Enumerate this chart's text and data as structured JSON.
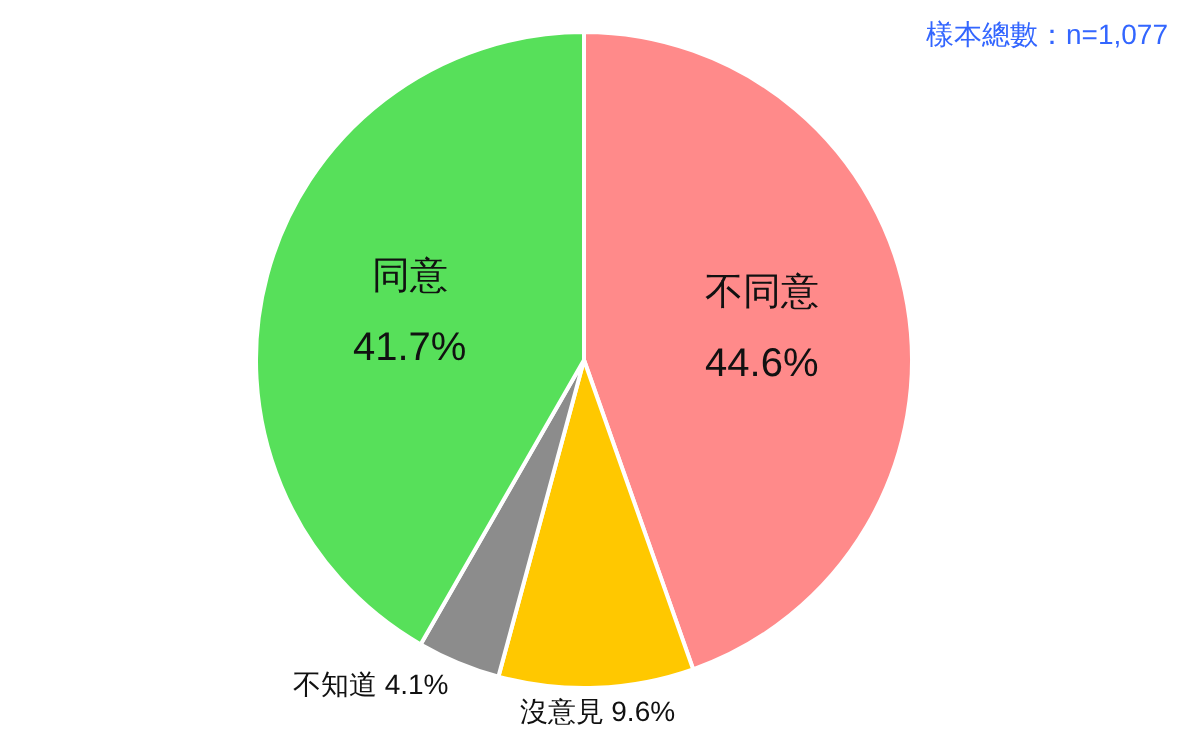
{
  "chart_data": {
    "type": "pie",
    "categories": [
      "不同意",
      "沒意見",
      "不知道",
      "同意"
    ],
    "values": [
      44.6,
      9.6,
      4.1,
      41.7
    ],
    "colors": [
      "#ff8a8a",
      "#ffc800",
      "#8c8c8c",
      "#57e05a"
    ],
    "value_labels": [
      "44.6%",
      "9.6%",
      "4.1%",
      "41.7%"
    ],
    "annotations": [
      "樣本總數：n=1,077"
    ]
  }
}
